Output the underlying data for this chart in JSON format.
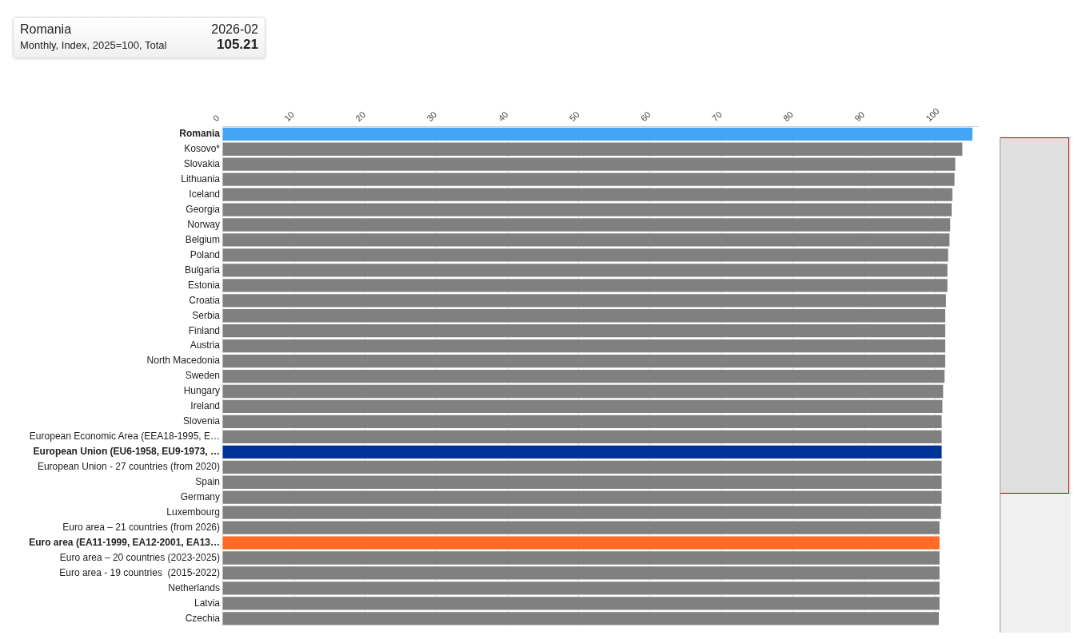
{
  "chart_data": {
    "type": "bar",
    "orientation": "horizontal",
    "title": "Romania",
    "subtitle": "Monthly, Index, 2025=100, Total",
    "annotations": [
      "2026-02",
      "105.21"
    ],
    "categories": [
      "Romania",
      "Kosovo*",
      "Slovakia",
      "Lithuania",
      "Iceland",
      "Georgia",
      "Norway",
      "Belgium",
      "Poland",
      "Bulgaria",
      "Estonia",
      "Croatia",
      "Serbia",
      "Finland",
      "Austria",
      "North Macedonia",
      "Sweden",
      "Hungary",
      "Ireland",
      "Slovenia",
      "European Economic Area (EEA18-1995, E…",
      "European Union (EU6-1958, EU9-1973, …",
      "European Union - 27 countries (from 2020)",
      "Spain",
      "Germany",
      "Luxembourg",
      "Euro area – 21 countries (from 2026)",
      "Euro area (EA11-1999, EA12-2001, EA13…",
      "Euro area – 20 countries (2023-2025)",
      "Euro area - 19 countries  (2015-2022)",
      "Netherlands",
      "Latvia",
      "Czechia"
    ],
    "values": [
      105.21,
      103.8,
      102.8,
      102.7,
      102.4,
      102.3,
      102.1,
      102.0,
      101.8,
      101.7,
      101.7,
      101.5,
      101.4,
      101.4,
      101.4,
      101.4,
      101.3,
      101.1,
      101.0,
      100.9,
      100.9,
      100.9,
      100.9,
      100.9,
      100.9,
      100.8,
      100.6,
      100.6,
      100.6,
      100.6,
      100.6,
      100.6,
      100.5
    ],
    "colors": [
      "#42a5f5",
      "#808080",
      "#808080",
      "#808080",
      "#808080",
      "#808080",
      "#808080",
      "#808080",
      "#808080",
      "#808080",
      "#808080",
      "#808080",
      "#808080",
      "#808080",
      "#808080",
      "#808080",
      "#808080",
      "#808080",
      "#808080",
      "#808080",
      "#808080",
      "#003399",
      "#808080",
      "#808080",
      "#808080",
      "#808080",
      "#808080",
      "#ff6a24",
      "#808080",
      "#808080",
      "#808080",
      "#808080",
      "#808080"
    ],
    "xlim": [
      0,
      106
    ],
    "xticks": [
      0,
      10,
      20,
      30,
      40,
      50,
      60,
      70,
      80,
      90,
      100
    ],
    "grid": "x",
    "legend": false
  }
}
